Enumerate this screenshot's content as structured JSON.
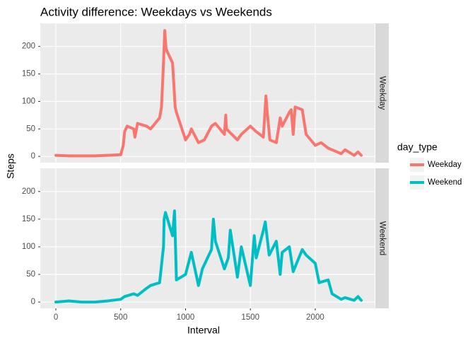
{
  "chart_data": {
    "type": "line",
    "title": "Activity difference: Weekdays vs Weekends",
    "xlabel": "Interval",
    "ylabel": "Steps",
    "legend_title": "day_type",
    "legend_position": "right",
    "grid": true,
    "xlim": [
      -120,
      2458
    ],
    "xticks": [
      0,
      500,
      1000,
      1500,
      2000
    ],
    "ylim": [
      -11.4,
      242
    ],
    "yticks": [
      0,
      50,
      100,
      150,
      200
    ],
    "series": [
      {
        "name": "Weekday",
        "color": "#f8766d",
        "x": [
          0,
          100,
          200,
          300,
          400,
          500,
          520,
          530,
          550,
          600,
          610,
          630,
          700,
          730,
          800,
          815,
          830,
          835,
          840,
          845,
          850,
          900,
          910,
          920,
          930,
          1000,
          1030,
          1045,
          1100,
          1145,
          1200,
          1230,
          1300,
          1310,
          1315,
          1400,
          1430,
          1500,
          1545,
          1600,
          1620,
          1630,
          1650,
          1700,
          1730,
          1745,
          1800,
          1815,
          1830,
          1845,
          1900,
          1930,
          2000,
          2045,
          2100,
          2200,
          2230,
          2300,
          2330,
          2355
        ],
        "values": [
          2,
          1,
          1,
          1,
          2,
          3,
          20,
          45,
          55,
          50,
          35,
          60,
          55,
          50,
          70,
          90,
          170,
          200,
          229,
          210,
          195,
          170,
          130,
          90,
          80,
          30,
          40,
          50,
          25,
          30,
          55,
          60,
          40,
          75,
          50,
          30,
          40,
          55,
          45,
          35,
          110,
          80,
          30,
          25,
          70,
          55,
          80,
          85,
          40,
          90,
          85,
          40,
          20,
          25,
          15,
          5,
          12,
          2,
          8,
          2
        ]
      },
      {
        "name": "Weekend",
        "color": "#00bfc4",
        "x": [
          0,
          100,
          200,
          300,
          400,
          500,
          530,
          600,
          630,
          700,
          730,
          800,
          830,
          835,
          845,
          900,
          915,
          930,
          1000,
          1045,
          1100,
          1130,
          1200,
          1215,
          1230,
          1300,
          1330,
          1345,
          1400,
          1430,
          1500,
          1530,
          1545,
          1600,
          1615,
          1645,
          1700,
          1730,
          1745,
          1800,
          1830,
          1900,
          1930,
          2000,
          2030,
          2100,
          2130,
          2200,
          2230,
          2300,
          2330,
          2355
        ],
        "values": [
          0,
          2,
          0,
          0,
          2,
          5,
          10,
          15,
          12,
          25,
          30,
          35,
          100,
          150,
          162,
          120,
          165,
          40,
          50,
          90,
          30,
          60,
          95,
          150,
          110,
          60,
          80,
          130,
          45,
          100,
          30,
          120,
          80,
          130,
          145,
          85,
          110,
          50,
          90,
          100,
          55,
          95,
          85,
          70,
          35,
          40,
          15,
          5,
          8,
          3,
          10,
          3
        ]
      }
    ]
  }
}
